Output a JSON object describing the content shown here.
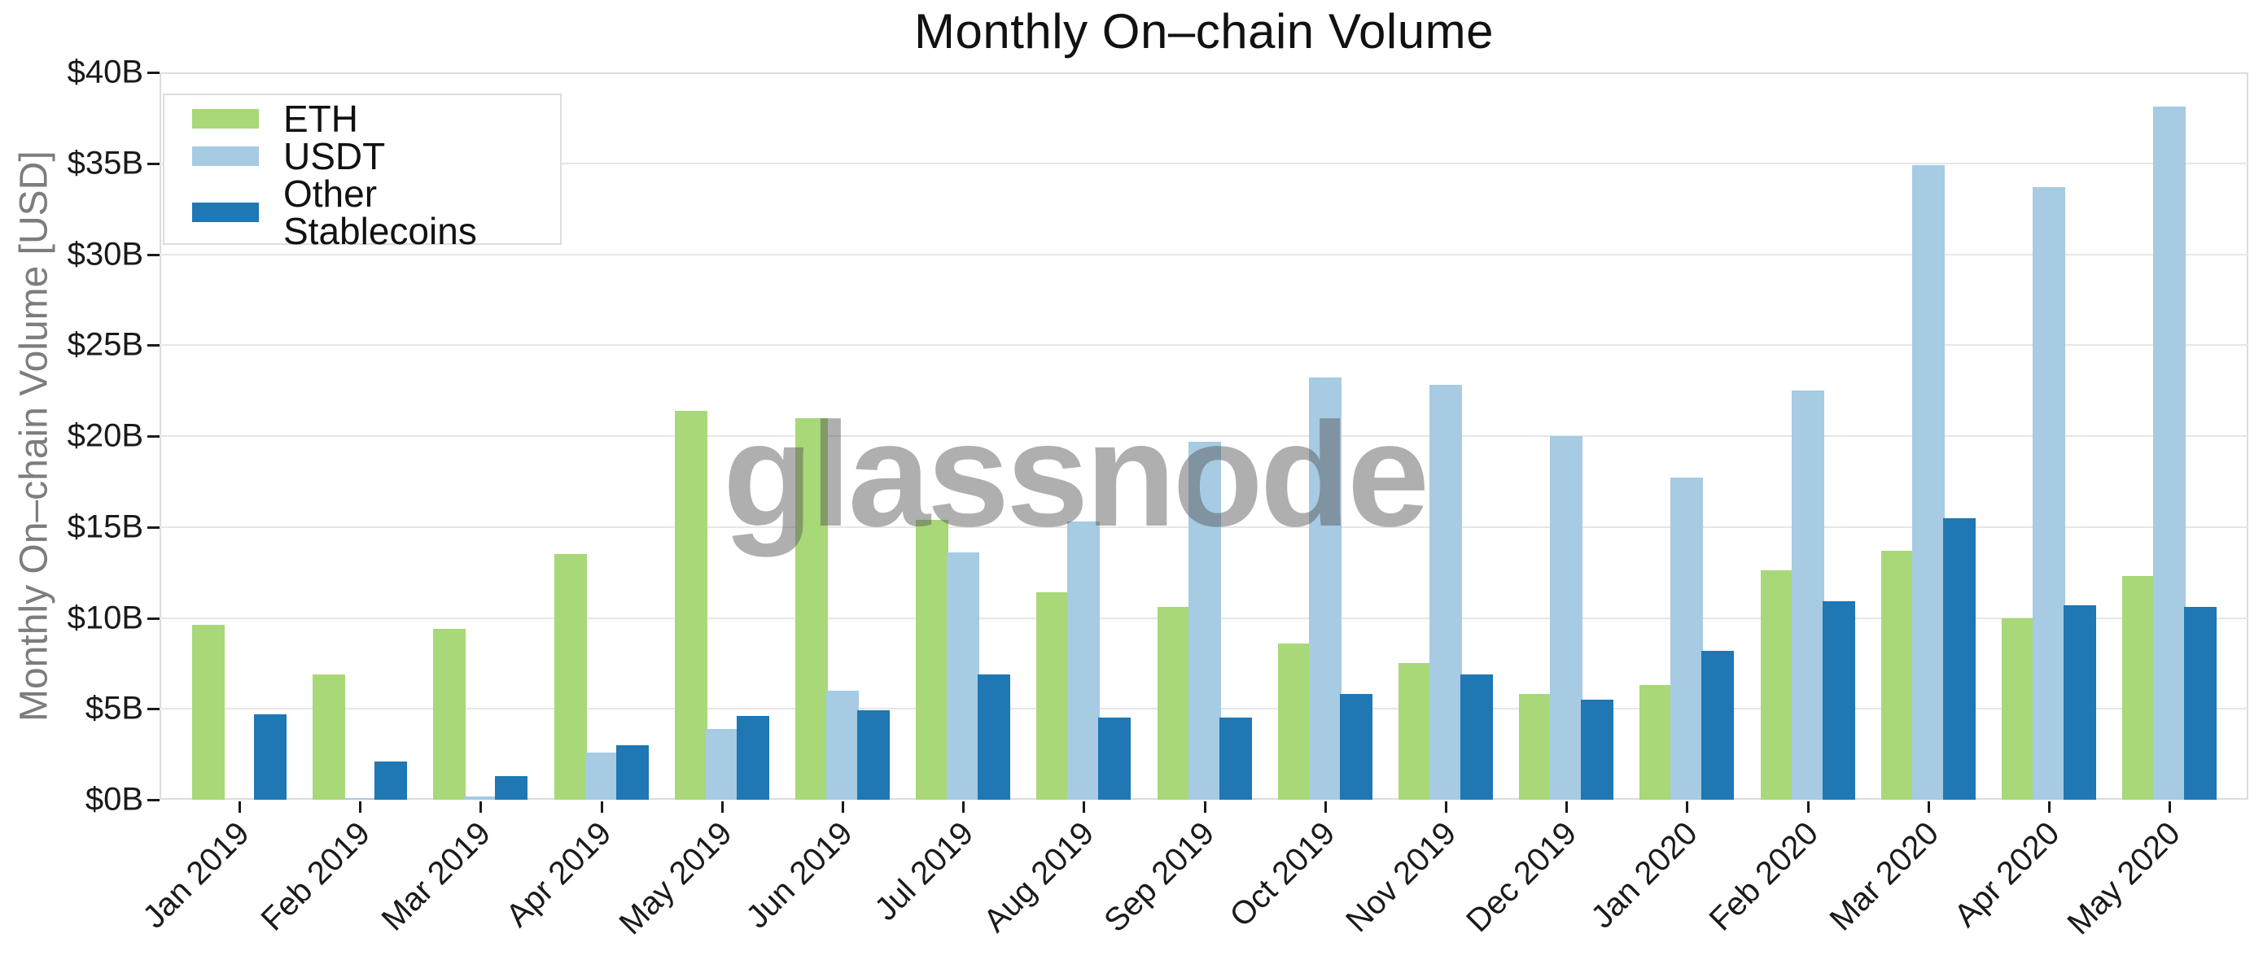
{
  "title": "Monthly On–chain Volume",
  "watermark": "glassnode",
  "y_axis": {
    "title": "Monthly On–chain Volume [USD]",
    "tick_labels": [
      "$0B",
      "$5B",
      "$10B",
      "$15B",
      "$20B",
      "$25B",
      "$30B",
      "$35B",
      "$40B"
    ]
  },
  "legend": {
    "items": [
      {
        "label": "ETH",
        "color": "#a8d878"
      },
      {
        "label": "USDT",
        "color": "#a6cbe3"
      },
      {
        "label": "Other Stablecoins",
        "color": "#1f77b4"
      }
    ]
  },
  "chart_data": {
    "type": "bar",
    "title": "Monthly On–chain Volume",
    "xlabel": "",
    "ylabel": "Monthly On–chain Volume [USD]",
    "units": "billions USD",
    "ylim": [
      0,
      40
    ],
    "ytick_step": 5,
    "grid": true,
    "legend_position": "upper left",
    "categories": [
      "Jan 2019",
      "Feb 2019",
      "Mar 2019",
      "Apr 2019",
      "May 2019",
      "Jun 2019",
      "Jul 2019",
      "Aug 2019",
      "Sep 2019",
      "Oct 2019",
      "Nov 2019",
      "Dec 2019",
      "Jan 2020",
      "Feb 2020",
      "Mar 2020",
      "Apr 2020",
      "May 2020"
    ],
    "series": [
      {
        "name": "ETH",
        "color": "#a8d878",
        "values": [
          9.6,
          6.9,
          9.4,
          13.5,
          21.4,
          21.0,
          15.4,
          11.4,
          10.6,
          8.6,
          7.5,
          5.8,
          6.3,
          12.6,
          13.7,
          10.0,
          12.3
        ]
      },
      {
        "name": "USDT",
        "color": "#a6cbe3",
        "values": [
          0.0,
          0.1,
          0.2,
          2.6,
          3.9,
          6.0,
          13.6,
          15.3,
          19.7,
          23.2,
          22.8,
          20.0,
          17.7,
          22.5,
          34.9,
          33.7,
          38.1
        ]
      },
      {
        "name": "Other Stablecoins",
        "color": "#1f77b4",
        "values": [
          4.7,
          2.1,
          1.3,
          3.0,
          4.6,
          4.9,
          6.9,
          4.5,
          4.5,
          5.8,
          6.9,
          5.5,
          8.2,
          10.9,
          15.5,
          10.7,
          10.6
        ]
      }
    ]
  }
}
